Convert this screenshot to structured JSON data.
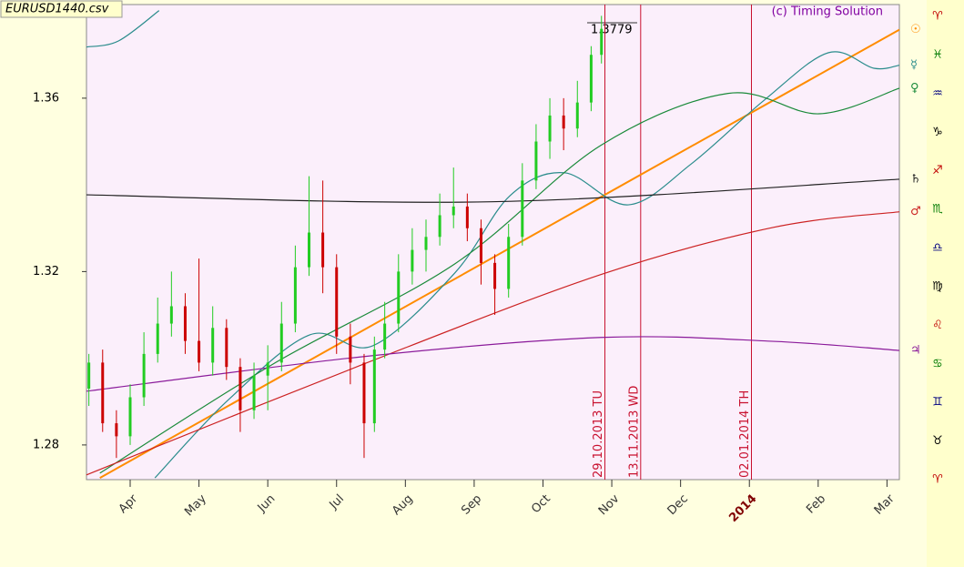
{
  "chart_data": {
    "type": "candlestick",
    "title": "EURUSD1440.csv",
    "subtitle": "(c) Timing Solution",
    "price_label": "1.3779",
    "xlim": [
      3.365,
      15.18
    ],
    "ylim": [
      1.272,
      1.3816
    ],
    "yticks": [
      1.28,
      1.32,
      1.36
    ],
    "xticks": [
      {
        "value": 4,
        "label": "Apr"
      },
      {
        "value": 5,
        "label": "May"
      },
      {
        "value": 6,
        "label": "Jun"
      },
      {
        "value": 7,
        "label": "Jul"
      },
      {
        "value": 8,
        "label": "Aug"
      },
      {
        "value": 9,
        "label": "Sep"
      },
      {
        "value": 10,
        "label": "Oct"
      },
      {
        "value": 11,
        "label": "Nov"
      },
      {
        "value": 12,
        "label": "Dec"
      },
      {
        "value": 13,
        "label": "2014",
        "color": "#800000"
      },
      {
        "value": 14,
        "label": "Feb"
      },
      {
        "value": 15,
        "label": "Mar"
      }
    ],
    "candles": {
      "up_color": "#22cc22",
      "down_color": "#cc0000",
      "x": [
        3.4,
        3.6,
        3.8,
        4.0,
        4.2,
        4.4,
        4.6,
        4.8,
        5.0,
        5.2,
        5.4,
        5.6,
        5.8,
        6.0,
        6.2,
        6.4,
        6.6,
        6.8,
        7.0,
        7.2,
        7.4,
        7.55,
        7.7,
        7.9,
        8.1,
        8.3,
        8.5,
        8.7,
        8.9,
        9.1,
        9.3,
        9.5,
        9.7,
        9.9,
        10.1,
        10.3,
        10.5,
        10.7,
        10.85
      ],
      "open": [
        1.293,
        1.299,
        1.285,
        1.282,
        1.291,
        1.301,
        1.308,
        1.312,
        1.304,
        1.299,
        1.307,
        1.298,
        1.288,
        1.296,
        1.299,
        1.308,
        1.321,
        1.329,
        1.321,
        1.305,
        1.299,
        1.285,
        1.302,
        1.308,
        1.32,
        1.325,
        1.328,
        1.333,
        1.335,
        1.33,
        1.322,
        1.316,
        1.328,
        1.341,
        1.35,
        1.356,
        1.353,
        1.359,
        1.37
      ],
      "high": [
        1.301,
        1.302,
        1.288,
        1.294,
        1.306,
        1.314,
        1.32,
        1.315,
        1.323,
        1.312,
        1.309,
        1.3,
        1.299,
        1.303,
        1.313,
        1.326,
        1.342,
        1.341,
        1.324,
        1.308,
        1.301,
        1.305,
        1.313,
        1.324,
        1.33,
        1.332,
        1.338,
        1.344,
        1.338,
        1.332,
        1.324,
        1.331,
        1.345,
        1.354,
        1.36,
        1.36,
        1.364,
        1.372,
        1.379
      ],
      "low": [
        1.289,
        1.283,
        1.277,
        1.28,
        1.289,
        1.299,
        1.305,
        1.301,
        1.297,
        1.296,
        1.295,
        1.283,
        1.286,
        1.288,
        1.297,
        1.306,
        1.319,
        1.315,
        1.301,
        1.294,
        1.277,
        1.283,
        1.3,
        1.306,
        1.317,
        1.32,
        1.326,
        1.33,
        1.327,
        1.317,
        1.31,
        1.314,
        1.326,
        1.339,
        1.346,
        1.348,
        1.351,
        1.357,
        1.368
      ],
      "close": [
        1.299,
        1.285,
        1.282,
        1.291,
        1.301,
        1.308,
        1.312,
        1.304,
        1.299,
        1.307,
        1.298,
        1.288,
        1.296,
        1.299,
        1.308,
        1.321,
        1.329,
        1.321,
        1.305,
        1.299,
        1.285,
        1.302,
        1.308,
        1.32,
        1.325,
        1.328,
        1.333,
        1.335,
        1.33,
        1.322,
        1.316,
        1.328,
        1.341,
        1.35,
        1.356,
        1.353,
        1.359,
        1.37,
        1.376
      ]
    },
    "series": [
      {
        "name": "☉",
        "color": "#ff8c00",
        "x": [
          3.56,
          15.18
        ],
        "values": [
          1.2724,
          1.3758
        ]
      },
      {
        "name": "☿",
        "color": "#2a8c8c",
        "x": [
          3.365,
          3.83,
          4.42,
          null,
          4.36,
          5.42,
          6.61,
          7.53,
          8.72,
          9.52,
          10.31,
          11.24,
          12.16,
          13.22,
          14.15,
          14.81,
          15.18
        ],
        "values": [
          1.3718,
          1.3732,
          1.3802,
          null,
          1.2724,
          1.2903,
          1.3054,
          1.3029,
          1.3197,
          1.3375,
          1.3428,
          1.3354,
          1.3449,
          1.3596,
          1.3705,
          1.3669,
          1.3676
        ]
      },
      {
        "name": "♀",
        "color": "#1a8a3a",
        "x": [
          3.56,
          6.08,
          8.72,
          10.84,
          12.69,
          14.01,
          15.18
        ],
        "values": [
          1.2735,
          1.2987,
          1.3218,
          1.3491,
          1.3611,
          1.3564,
          1.3623
        ]
      },
      {
        "name": "♄",
        "color": "#222222",
        "x": [
          3.365,
          9.25,
          15.18
        ],
        "values": [
          1.3377,
          1.3361,
          1.3413
        ]
      },
      {
        "name": "♂",
        "color": "#cc2222",
        "x": [
          3.365,
          7.4,
          10.84,
          13.35,
          15.18
        ],
        "values": [
          1.2731,
          1.2987,
          1.3193,
          1.3302,
          1.3338
        ]
      },
      {
        "name": "♃",
        "color": "#8a1a9a",
        "x": [
          3.365,
          7.4,
          10.84,
          13.35,
          15.18
        ],
        "values": [
          1.2924,
          1.3004,
          1.3048,
          1.3039,
          1.3018
        ]
      }
    ],
    "vlines": [
      {
        "x": 10.9,
        "label": "29.10.2013 TU"
      },
      {
        "x": 11.42,
        "label": "13.11.2013 WD"
      },
      {
        "x": 13.03,
        "label": "02.01.2014 TH"
      }
    ],
    "zodiac": [
      {
        "label": "♈",
        "color": "#c00000"
      },
      {
        "label": "♓",
        "color": "#007a00"
      },
      {
        "label": "♒",
        "color": "#000080"
      },
      {
        "label": "♑",
        "color": "#000000"
      },
      {
        "label": "♐",
        "color": "#c00000"
      },
      {
        "label": "♏",
        "color": "#007a00"
      },
      {
        "label": "♎",
        "color": "#000080"
      },
      {
        "label": "♍",
        "color": "#000000"
      },
      {
        "label": "♌",
        "color": "#c00000"
      },
      {
        "label": "♋",
        "color": "#007a00"
      },
      {
        "label": "♊",
        "color": "#000080"
      },
      {
        "label": "♉",
        "color": "#000000"
      },
      {
        "label": "♈",
        "color": "#c00000"
      }
    ]
  }
}
